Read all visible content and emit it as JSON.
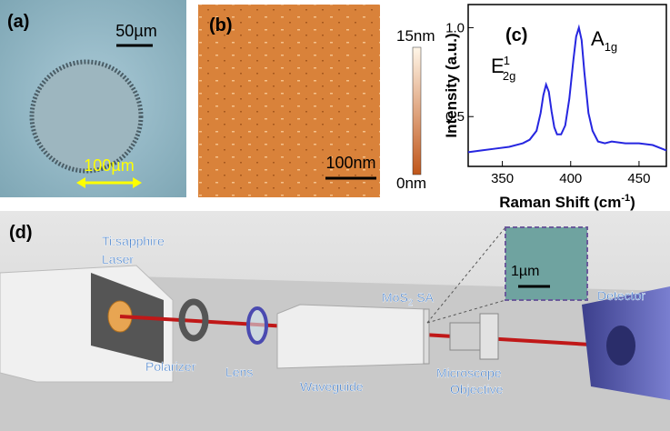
{
  "panels": {
    "a": {
      "label": "(a)",
      "scale_top": "50µm",
      "scale_bottom": "100µm"
    },
    "b": {
      "label": "(b)",
      "colorbar_max": "15nm",
      "colorbar_min": "0nm",
      "scale": "100nm"
    },
    "d": {
      "label": "(d)",
      "laser": [
        "Ti:sapphire",
        "Laser"
      ],
      "sa": "MoS",
      "sa_sub": "2",
      "sa_end": " SA",
      "inset_scale": "1µm",
      "detector": "Detector",
      "polarizer": "Polarizer",
      "lens": "Lens",
      "waveguide": "Waveguide",
      "objective": [
        "Microscope",
        "Objective"
      ]
    }
  },
  "chart_data": {
    "type": "line",
    "label": "(c)",
    "x": [
      325,
      335,
      345,
      355,
      365,
      370,
      375,
      378,
      380,
      382,
      384,
      386,
      388,
      390,
      393,
      396,
      399,
      402,
      404,
      406,
      408,
      410,
      413,
      416,
      420,
      425,
      430,
      440,
      450,
      460,
      470
    ],
    "series": [
      {
        "color": "#2626e0",
        "values": [
          0.3,
          0.31,
          0.32,
          0.33,
          0.35,
          0.37,
          0.42,
          0.52,
          0.62,
          0.68,
          0.64,
          0.53,
          0.44,
          0.4,
          0.4,
          0.45,
          0.6,
          0.82,
          0.95,
          1.0,
          0.93,
          0.75,
          0.52,
          0.42,
          0.36,
          0.35,
          0.36,
          0.35,
          0.35,
          0.34,
          0.31
        ]
      }
    ],
    "xlim": [
      325,
      470
    ],
    "xticks": [
      350,
      400,
      450
    ],
    "ylim": [
      0.22,
      1.13
    ],
    "yticks": [
      0.5,
      {
        "value": 1,
        "label": "1.0"
      }
    ],
    "ylabel": "Intensity (a.u.)",
    "xlabel": "Raman Shift (cm",
    "xlabel_sup": "-1",
    "xlabel_end": ")",
    "annotations": [
      {
        "text": "E",
        "sub": "2g",
        "sup": "1"
      },
      {
        "text": "A",
        "sub": "1g"
      }
    ]
  }
}
